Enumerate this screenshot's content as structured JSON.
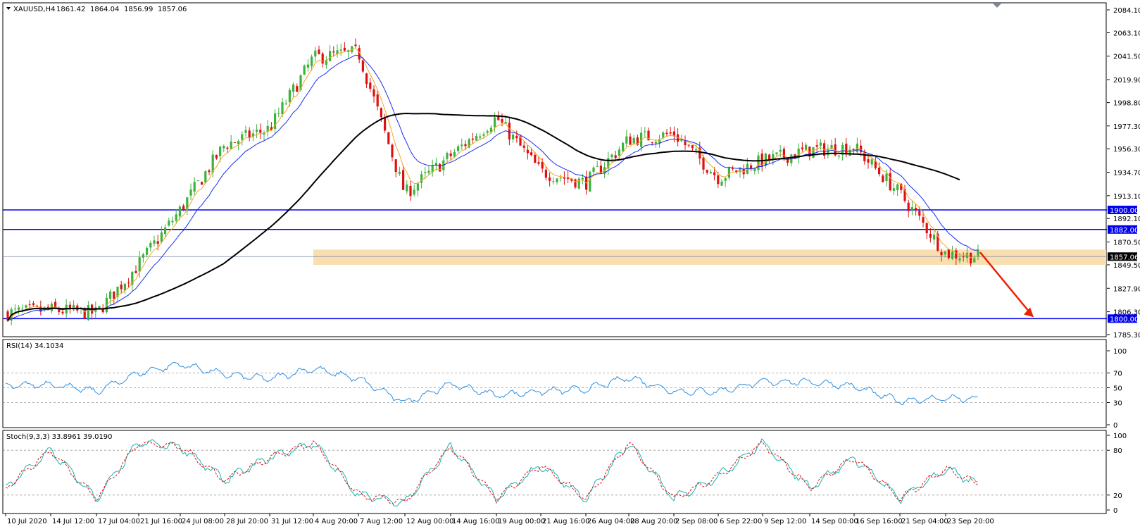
{
  "header": {
    "symbol": "XAUUSD,H4",
    "open": "1861.42",
    "high": "1864.04",
    "low": "1856.99",
    "close": "1857.06"
  },
  "rsi": {
    "label": "RSI(14) 34.1034"
  },
  "stoch": {
    "label": "Stoch(9,3,3) 33.8961 39.0190"
  },
  "colors": {
    "bull": "#3cb33c",
    "bear": "#e01010",
    "ema_fast": "#f5a623",
    "ema_mid": "#1a2cf0",
    "ma_slow": "#000000",
    "level": "#0000ee",
    "zone": "#f9deb1",
    "indicator": "#2f8fe0",
    "stoch_signal": "#e01010",
    "stoch_main": "#20b0b0",
    "arrow": "#ee2200"
  },
  "chart_data": [
    {
      "type": "candlestick",
      "title": "XAUUSD,H4",
      "y_ticks": [
        "2084.10",
        "2063.10",
        "2041.50",
        "2019.90",
        "1998.80",
        "1977.30",
        "1956.30",
        "1934.70",
        "1913.10",
        "1892.10",
        "1870.50",
        "1849.50",
        "1827.90",
        "1806.30",
        "1785.30"
      ],
      "ylim": [
        1785.3,
        2084.1
      ],
      "x_ticks": [
        "10 Jul 2020",
        "14 Jul 12:00",
        "17 Jul 04:00",
        "21 Jul 16:00",
        "24 Jul 08:00",
        "28 Jul 20:00",
        "31 Jul 12:00",
        "4 Aug 20:00",
        "7 Aug 12:00",
        "12 Aug 00:00",
        "14 Aug 16:00",
        "19 Aug 00:00",
        "21 Aug 16:00",
        "26 Aug 04:00",
        "28 Aug 20:00",
        "2 Sep 08:00",
        "6 Sep 22:00",
        "9 Sep 12:00",
        "14 Sep 00:00",
        "16 Sep 16:00",
        "21 Sep 04:00",
        "23 Sep 20:00"
      ],
      "price_path": [
        {
          "label": "10 Jul 2020",
          "value": 1805
        },
        {
          "label": "14 Jul 12:00",
          "value": 1808
        },
        {
          "label": "17 Jul 04:00",
          "value": 1805
        },
        {
          "label": "21 Jul 16:00",
          "value": 1850
        },
        {
          "label": "24 Jul 08:00",
          "value": 1900
        },
        {
          "label": "28 Jul 20:00",
          "value": 1960
        },
        {
          "label": "31 Jul 12:00",
          "value": 1975
        },
        {
          "label": "4 Aug 20:00",
          "value": 2040
        },
        {
          "label": "7 Aug 12:00",
          "value": 2045
        },
        {
          "label": "12 Aug 00:00",
          "value": 1915
        },
        {
          "label": "14 Aug 16:00",
          "value": 1950
        },
        {
          "label": "19 Aug 00:00",
          "value": 1985
        },
        {
          "label": "21 Aug 16:00",
          "value": 1935
        },
        {
          "label": "26 Aug 04:00",
          "value": 1925
        },
        {
          "label": "28 Aug 20:00",
          "value": 1965
        },
        {
          "label": "2 Sep 08:00",
          "value": 1970
        },
        {
          "label": "6 Sep 22:00",
          "value": 1930
        },
        {
          "label": "9 Sep 12:00",
          "value": 1945
        },
        {
          "label": "14 Sep 00:00",
          "value": 1955
        },
        {
          "label": "16 Sep 16:00",
          "value": 1958
        },
        {
          "label": "21 Sep 04:00",
          "value": 1915
        },
        {
          "label": "23 Sep 20:00",
          "value": 1860
        },
        {
          "label": "end",
          "value": 1857.06
        }
      ],
      "horizontal_levels": [
        {
          "label": "1900.00",
          "value": 1900
        },
        {
          "label": "1882.00",
          "value": 1882
        },
        {
          "label": "1800.00",
          "value": 1800
        }
      ],
      "current_price": {
        "label": "1857.06",
        "value": 1857.06
      },
      "support_zone": [
        1849.5,
        1863.5
      ],
      "arrow": {
        "from": 1861,
        "to": 1800
      }
    },
    {
      "type": "line",
      "title": "RSI(14) 34.1034",
      "ylim": [
        0,
        100
      ],
      "y_ticks": [
        "100",
        "70",
        "50",
        "30",
        "0"
      ],
      "levels": [
        70,
        50,
        30
      ],
      "path": [
        {
          "label": "10 Jul 2020",
          "value": 52
        },
        {
          "label": "14 Jul 12:00",
          "value": 55
        },
        {
          "label": "17 Jul 04:00",
          "value": 45
        },
        {
          "label": "21 Jul 16:00",
          "value": 70
        },
        {
          "label": "24 Jul 08:00",
          "value": 82
        },
        {
          "label": "28 Jul 20:00",
          "value": 68
        },
        {
          "label": "31 Jul 12:00",
          "value": 62
        },
        {
          "label": "4 Aug 20:00",
          "value": 76
        },
        {
          "label": "7 Aug 12:00",
          "value": 62
        },
        {
          "label": "12 Aug 00:00",
          "value": 30
        },
        {
          "label": "14 Aug 16:00",
          "value": 55
        },
        {
          "label": "19 Aug 00:00",
          "value": 40
        },
        {
          "label": "21 Aug 16:00",
          "value": 45
        },
        {
          "label": "26 Aug 04:00",
          "value": 48
        },
        {
          "label": "28 Aug 20:00",
          "value": 64
        },
        {
          "label": "2 Sep 08:00",
          "value": 45
        },
        {
          "label": "6 Sep 22:00",
          "value": 45
        },
        {
          "label": "9 Sep 12:00",
          "value": 58
        },
        {
          "label": "14 Sep 00:00",
          "value": 58
        },
        {
          "label": "16 Sep 16:00",
          "value": 52
        },
        {
          "label": "21 Sep 04:00",
          "value": 32
        },
        {
          "label": "23 Sep 20:00",
          "value": 36
        },
        {
          "label": "end",
          "value": 34.1
        }
      ]
    },
    {
      "type": "line",
      "title": "Stoch(9,3,3) 33.8961 39.0190",
      "ylim": [
        0,
        100
      ],
      "y_ticks": [
        "100",
        "80",
        "20",
        "0"
      ],
      "levels": [
        80,
        20
      ],
      "path": [
        {
          "label": "10 Jul 2020",
          "value": 30
        },
        {
          "label": "14 Jul 12:00",
          "value": 80
        },
        {
          "label": "17 Jul 04:00",
          "value": 15
        },
        {
          "label": "21 Jul 16:00",
          "value": 90
        },
        {
          "label": "24 Jul 08:00",
          "value": 85
        },
        {
          "label": "28 Jul 20:00",
          "value": 40
        },
        {
          "label": "31 Jul 12:00",
          "value": 70
        },
        {
          "label": "4 Aug 20:00",
          "value": 90
        },
        {
          "label": "7 Aug 12:00",
          "value": 20
        },
        {
          "label": "12 Aug 00:00",
          "value": 10
        },
        {
          "label": "14 Aug 16:00",
          "value": 85
        },
        {
          "label": "19 Aug 00:00",
          "value": 15
        },
        {
          "label": "21 Aug 16:00",
          "value": 60
        },
        {
          "label": "26 Aug 04:00",
          "value": 15
        },
        {
          "label": "28 Aug 20:00",
          "value": 90
        },
        {
          "label": "2 Sep 08:00",
          "value": 15
        },
        {
          "label": "6 Sep 22:00",
          "value": 45
        },
        {
          "label": "9 Sep 12:00",
          "value": 90
        },
        {
          "label": "14 Sep 00:00",
          "value": 30
        },
        {
          "label": "16 Sep 16:00",
          "value": 70
        },
        {
          "label": "21 Sep 04:00",
          "value": 15
        },
        {
          "label": "23 Sep 20:00",
          "value": 55
        },
        {
          "label": "end",
          "value": 33.9
        }
      ]
    }
  ]
}
